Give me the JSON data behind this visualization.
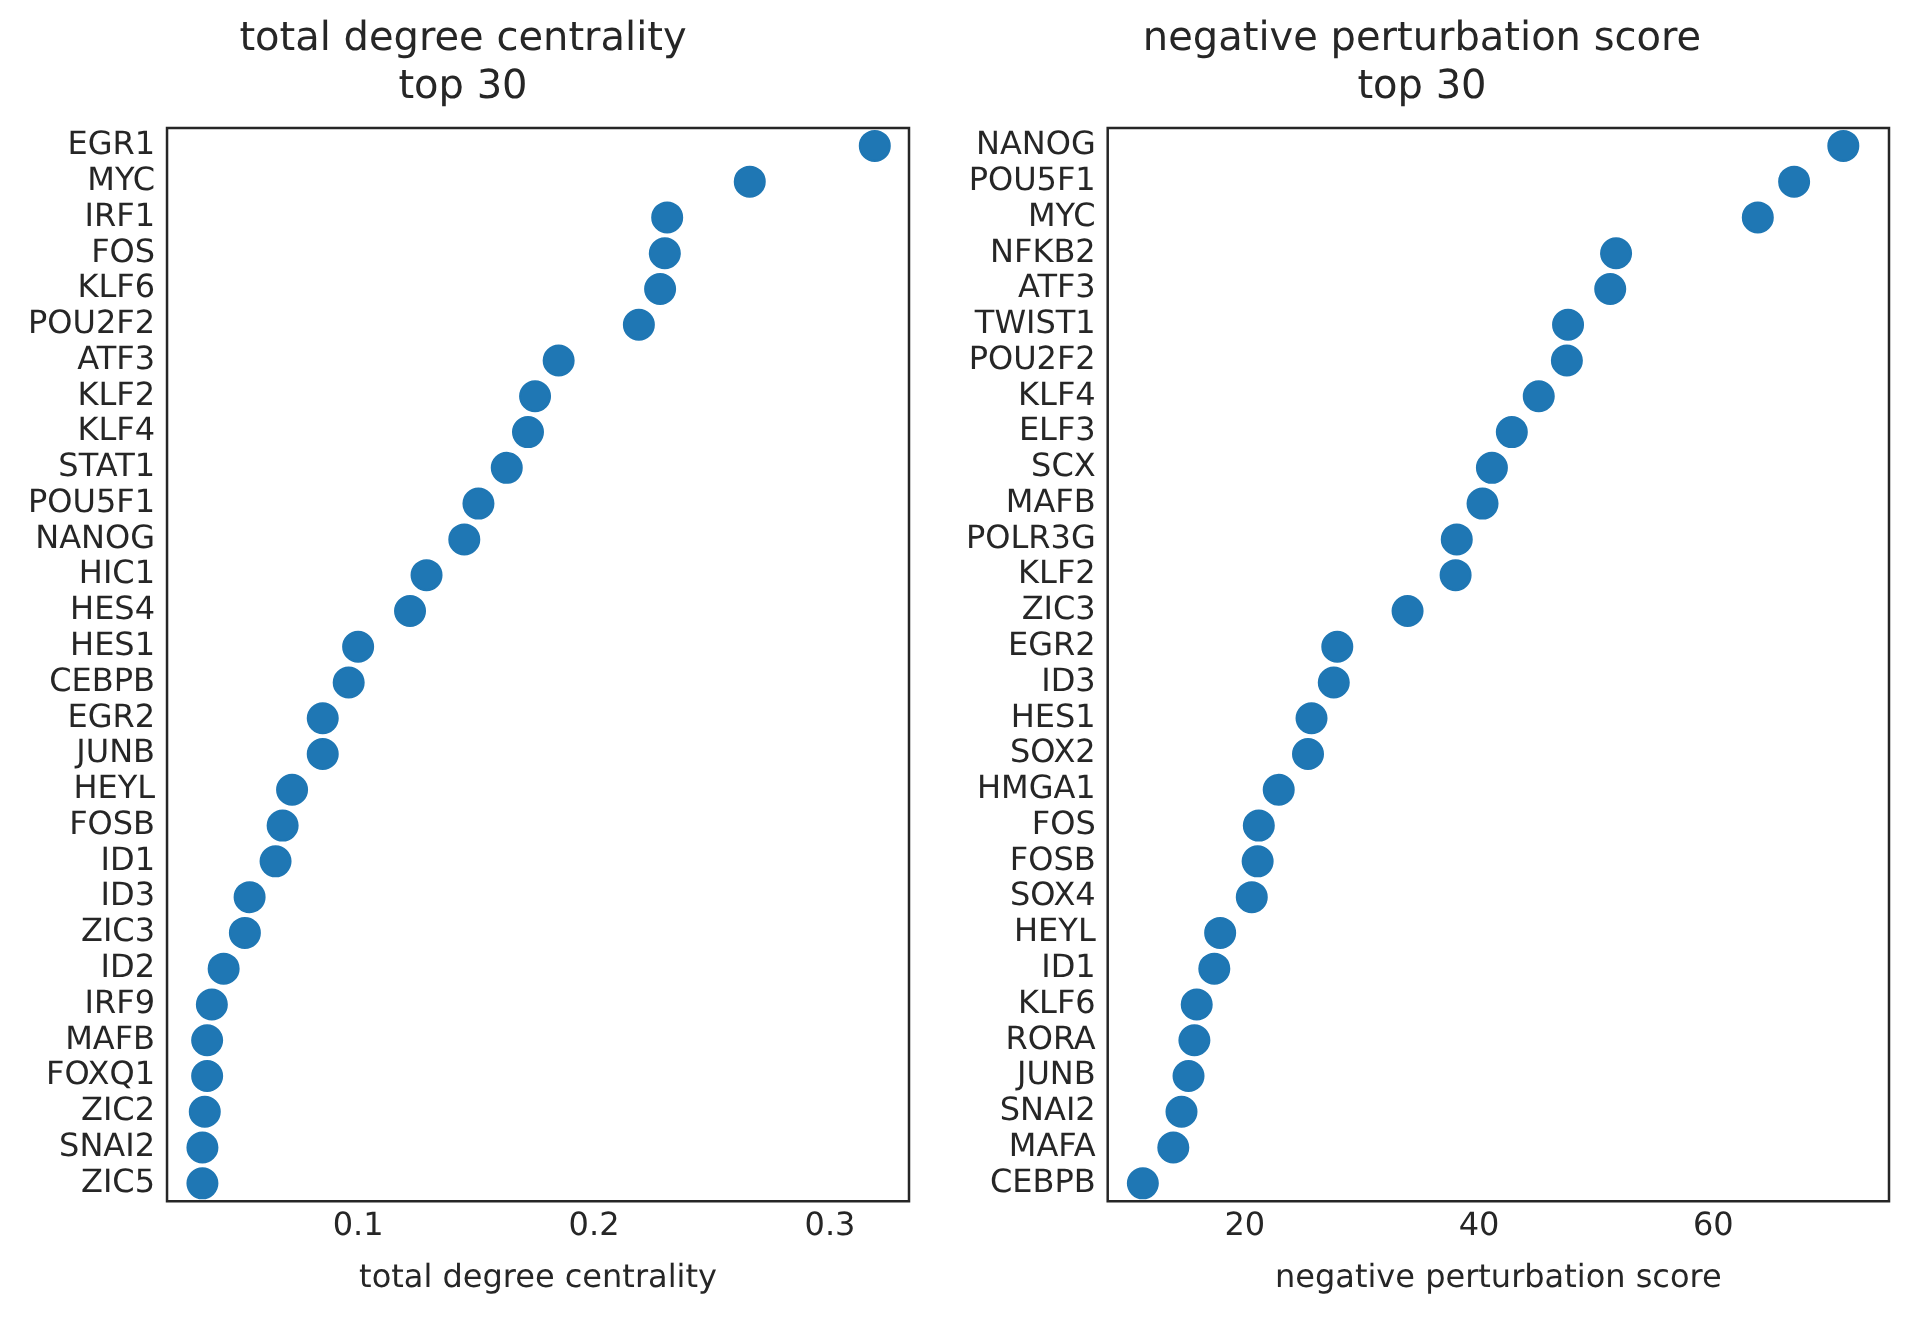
{
  "chart_data": [
    {
      "type": "scatter",
      "title": "total degree centrality\ntop 30",
      "xlabel": "total degree centrality",
      "categories": [
        "EGR1",
        "MYC",
        "IRF1",
        "FOS",
        "KLF6",
        "POU2F2",
        "ATF3",
        "KLF2",
        "KLF4",
        "STAT1",
        "POU5F1",
        "NANOG",
        "HIC1",
        "HES4",
        "HES1",
        "CEBPB",
        "EGR2",
        "JUNB",
        "HEYL",
        "FOSB",
        "ID1",
        "ID3",
        "ZIC3",
        "ID2",
        "IRF9",
        "MAFB",
        "FOXQ1",
        "ZIC2",
        "SNAI2",
        "ZIC5"
      ],
      "values": [
        0.319,
        0.266,
        0.231,
        0.23,
        0.228,
        0.219,
        0.185,
        0.175,
        0.172,
        0.163,
        0.151,
        0.145,
        0.129,
        0.122,
        0.1,
        0.096,
        0.085,
        0.085,
        0.072,
        0.068,
        0.065,
        0.054,
        0.052,
        0.043,
        0.038,
        0.036,
        0.036,
        0.035,
        0.034,
        0.034
      ],
      "color": "#1f77b4",
      "orientation": "horizontal",
      "xlim": [
        0.019,
        0.3335
      ],
      "xticks": [
        0.1,
        0.2,
        0.3
      ],
      "grid": false,
      "marker": "circle",
      "legend": false
    },
    {
      "type": "scatter",
      "title": "negative perturbation score\ntop 30",
      "xlabel": "negative perturbation score",
      "categories": [
        "NANOG",
        "POU5F1",
        "MYC",
        "NFKB2",
        "ATF3",
        "TWIST1",
        "POU2F2",
        "KLF4",
        "ELF3",
        "SCX",
        "MAFB",
        "POLR3G",
        "KLF2",
        "ZIC3",
        "EGR2",
        "ID3",
        "HES1",
        "SOX2",
        "HMGA1",
        "FOS",
        "FOSB",
        "SOX4",
        "HEYL",
        "ID1",
        "KLF6",
        "RORA",
        "JUNB",
        "SNAI2",
        "MAFA",
        "CEBPB"
      ],
      "values": [
        71.1,
        66.9,
        63.8,
        51.7,
        51.2,
        47.6,
        47.5,
        45.1,
        42.8,
        41.1,
        40.3,
        38.1,
        38.0,
        33.9,
        27.9,
        27.6,
        25.7,
        25.4,
        22.9,
        21.2,
        21.1,
        20.6,
        17.9,
        17.4,
        15.9,
        15.7,
        15.2,
        14.6,
        13.9,
        11.3
      ],
      "color": "#1f77b4",
      "orientation": "horizontal",
      "xlim": [
        8.3,
        75
      ],
      "xticks": [
        20,
        40,
        60
      ],
      "grid": false,
      "marker": "circle",
      "legend": false
    }
  ]
}
